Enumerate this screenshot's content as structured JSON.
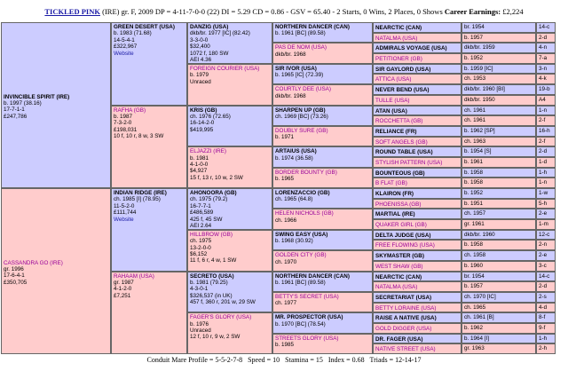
{
  "header": {
    "horse": "TICKLED PINK",
    "details": "(IRE) gr. F, 2009 DP = 4-11-7-0-0 (22) DI = 5.29 CD = 0.86 - GSV = 65.40 - 2 Starts, 0 Wins, 2 Places, 0 Shows",
    "earnings_label": "Career Earnings:",
    "earnings": "£2,224"
  },
  "pedigree": {
    "gen1": [
      {
        "name": "INVINCIBLE SPIRIT (IRE)",
        "lines": [
          "b. 1997 (38.16)",
          "17-7-1-1",
          "£247,786"
        ]
      },
      {
        "name": "CASSANDRA GO (IRE)",
        "lines": [
          "gr. 1996",
          "17-6-4-1",
          "£350,705"
        ]
      }
    ],
    "gen2": [
      {
        "name": "GREEN DESERT (USA)",
        "lines": [
          "b. 1983 (71.68)",
          "14-5-4-1",
          "£322,967",
          "Website"
        ]
      },
      {
        "name": "RAFHA (GB)",
        "lines": [
          "b. 1987",
          "7-3-2-0",
          "£198,031",
          "10 f, 10 r, 8 w, 3 SW"
        ]
      },
      {
        "name": "INDIAN RIDGE (IRE)",
        "lines": [
          "ch. 1985 [I] (78.95)",
          "11-5-2-0",
          "£111,744",
          "Website"
        ]
      },
      {
        "name": "RAHAAM (USA)",
        "lines": [
          "gr. 1987",
          "4-1-2-0",
          "£7,251"
        ]
      }
    ],
    "gen3": [
      {
        "name": "DANZIG (USA)",
        "lines": [
          "dkb/br. 1977 [IC] (82.42)",
          "3-3-0-0",
          "$32,400",
          "1072 f, 180 SW",
          "AEI 4.36"
        ]
      },
      {
        "name": "FOREIGN COURIER (USA)",
        "lines": [
          "b. 1979",
          "Unraced"
        ]
      },
      {
        "name": "KRIS (GB)",
        "lines": [
          "ch. 1976 (72.65)",
          "16-14-2-0",
          "$419,995"
        ]
      },
      {
        "name": "ELJAZZI (IRE)",
        "lines": [
          "b. 1981",
          "4-1-0-0",
          "$4,927",
          "15 f, 13 r, 10 w, 2 SW"
        ]
      },
      {
        "name": "AHONOORA (GB)",
        "lines": [
          "ch. 1975 (79.2)",
          "16-7-7-1",
          "£486,589",
          "425 f, 45 SW",
          "AEI 2.64"
        ]
      },
      {
        "name": "HILLBROW (GB)",
        "lines": [
          "ch. 1975",
          "13-2-0-0",
          "$6,152",
          "11 f, 6 r, 4 w, 1 SW"
        ]
      },
      {
        "name": "SECRETO (USA)",
        "lines": [
          "b. 1981 (79.25)",
          "4-3-0-1",
          "$326,537 (in UK)",
          "457 f, 360 r, 201 w, 29 SW"
        ]
      },
      {
        "name": "FAGER'S GLORY (USA)",
        "lines": [
          "b. 1976",
          "Unraced",
          "12 f, 10 r, 9 w, 2 SW"
        ]
      }
    ],
    "gen4": [
      {
        "name": "NORTHERN DANCER (CAN)",
        "lines": [
          "b. 1961 [BC] (89.58)"
        ]
      },
      {
        "name": "PAS DE NOM (USA)",
        "lines": [
          "dkb/br. 1968"
        ]
      },
      {
        "name": "SIR IVOR (USA)",
        "lines": [
          "b. 1965 [IC] (72.39)"
        ]
      },
      {
        "name": "COURTLY DEE (USA)",
        "lines": [
          "dkb/br. 1968"
        ]
      },
      {
        "name": "SHARPEN UP (GB)",
        "lines": [
          "ch. 1969 [BC] (73.26)"
        ]
      },
      {
        "name": "DOUBLY SURE (GB)",
        "lines": [
          "b. 1971"
        ]
      },
      {
        "name": "ARTAIUS (USA)",
        "lines": [
          "b. 1974 (36.58)"
        ]
      },
      {
        "name": "BORDER BOUNTY (GB)",
        "lines": [
          "b. 1965"
        ]
      },
      {
        "name": "LORENZACCIO (GB)",
        "lines": [
          "ch. 1965 (64.8)"
        ]
      },
      {
        "name": "HELEN NICHOLS (GB)",
        "lines": [
          "ch. 1966"
        ]
      },
      {
        "name": "SWING EASY (USA)",
        "lines": [
          "b. 1968 (30.92)"
        ]
      },
      {
        "name": "GOLDEN CITY (GB)",
        "lines": [
          "ch. 1970"
        ]
      },
      {
        "name": "NORTHERN DANCER (CAN)",
        "lines": [
          "b. 1961 [BC] (89.58)"
        ]
      },
      {
        "name": "BETTY'S SECRET (USA)",
        "lines": [
          "ch. 1977"
        ]
      },
      {
        "name": "MR. PROSPECTOR (USA)",
        "lines": [
          "b. 1970 [BC] (78.54)"
        ]
      },
      {
        "name": "STREETS GLORY (USA)",
        "lines": [
          "b. 1985"
        ]
      }
    ],
    "gen5": [
      {
        "name": "NEARCTIC (CAN)",
        "info": "br. 1954",
        "family": "14-c"
      },
      {
        "name": "NATALMA (USA)",
        "info": "b. 1957",
        "family": "2-d"
      },
      {
        "name": "ADMIRALS VOYAGE (USA)",
        "info": "dkb/br. 1959",
        "family": "4-n"
      },
      {
        "name": "PETITIONER (GB)",
        "info": "b. 1952",
        "family": "7-a"
      },
      {
        "name": "SIR GAYLORD (USA)",
        "info": "b. 1959 [IC]",
        "family": "3-n"
      },
      {
        "name": "ATTICA (USA)",
        "info": "ch. 1953",
        "family": "4-k"
      },
      {
        "name": "NEVER BEND (USA)",
        "info": "dkb/br. 1960 [BI]",
        "family": "19-b"
      },
      {
        "name": "TULLE (USA)",
        "info": "dkb/br. 1950",
        "family": "A4"
      },
      {
        "name": "ATAN (USA)",
        "info": "ch. 1961",
        "family": "1-n"
      },
      {
        "name": "ROCCHETTA (GB)",
        "info": "ch. 1961",
        "family": "2-f"
      },
      {
        "name": "RELIANCE (FR)",
        "info": "b. 1962 [SP]",
        "family": "16-h"
      },
      {
        "name": "SOFT ANGELS (GB)",
        "info": "ch. 1963",
        "family": "2-f"
      },
      {
        "name": "ROUND TABLE (USA)",
        "info": "b. 1954 [S]",
        "family": "2-d"
      },
      {
        "name": "STYLISH PATTERN (USA)",
        "info": "b. 1961",
        "family": "1-d"
      },
      {
        "name": "BOUNTEOUS (GB)",
        "info": "b. 1958",
        "family": "1-h"
      },
      {
        "name": "B FLAT (GB)",
        "info": "b. 1958",
        "family": "1-n"
      },
      {
        "name": "KLAIRON (FR)",
        "info": "b. 1952",
        "family": "1-w"
      },
      {
        "name": "PHOENISSA (GB)",
        "info": "b. 1951",
        "family": "5-h"
      },
      {
        "name": "MARTIAL (IRE)",
        "info": "ch. 1957",
        "family": "2-e"
      },
      {
        "name": "QUAKER GIRL (GB)",
        "info": "gr. 1961",
        "family": "1-m"
      },
      {
        "name": "DELTA JUDGE (USA)",
        "info": "dkb/br. 1960",
        "family": "12-c"
      },
      {
        "name": "FREE FLOWING (USA)",
        "info": "b. 1958",
        "family": "2-n"
      },
      {
        "name": "SKYMASTER (GB)",
        "info": "ch. 1958",
        "family": "2-e"
      },
      {
        "name": "WEST SHAW (GB)",
        "info": "b. 1960",
        "family": "3-c"
      },
      {
        "name": "NEARCTIC (CAN)",
        "info": "br. 1954",
        "family": "14-c"
      },
      {
        "name": "NATALMA (USA)",
        "info": "b. 1957",
        "family": "2-d"
      },
      {
        "name": "SECRETARIAT (USA)",
        "info": "ch. 1970 [IC]",
        "family": "2-s"
      },
      {
        "name": "BETTY LORAINE (USA)",
        "info": "ch. 1965",
        "family": "4-d"
      },
      {
        "name": "RAISE A NATIVE (USA)",
        "info": "ch. 1961 [B]",
        "family": "8-f"
      },
      {
        "name": "GOLD DIGGER (USA)",
        "info": "b. 1962",
        "family": "9-f"
      },
      {
        "name": "DR. FAGER (USA)",
        "info": "b. 1964 [I]",
        "family": "1-h"
      },
      {
        "name": "NATIVE STREET (USA)",
        "info": "gr. 1963",
        "family": "2-h"
      }
    ]
  },
  "footer": "Conduit Mare Profile = 5-5-2-7-8   Speed = 10   Stamina = 15   Index = 0.68   Triads = 12-14-17"
}
